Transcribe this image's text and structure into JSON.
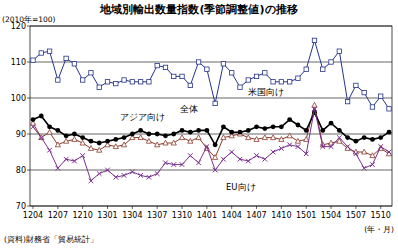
{
  "chart_data": {
    "type": "line",
    "title": "地域別輸出数量指数(季節調整値)の推移",
    "y_label": "(2010年=100)",
    "x_label": "(年・月)",
    "source": "(資料)財務省「貿易統計」",
    "categories": [
      "1204",
      null,
      null,
      "1207",
      null,
      null,
      "1210",
      null,
      null,
      "1301",
      null,
      null,
      "1304",
      null,
      null,
      "1307",
      null,
      null,
      "1310",
      null,
      null,
      "1401",
      null,
      null,
      "1404",
      null,
      null,
      "1407",
      null,
      null,
      "1410",
      null,
      null,
      "1501",
      null,
      null,
      "1504",
      null,
      null,
      "1507",
      null,
      null,
      "1510",
      null
    ],
    "ylim": [
      70,
      120
    ],
    "yticks": [
      70,
      80,
      90,
      100,
      110,
      120
    ],
    "grid": true,
    "series": [
      {
        "name": "米国向け",
        "color": "#26348a",
        "marker": "square",
        "line_style": "solid",
        "values": [
          110.5,
          112.5,
          113,
          105,
          111,
          109.5,
          105,
          107,
          103,
          104.5,
          104,
          105,
          104.5,
          104.5,
          104.5,
          109,
          108.5,
          106,
          106,
          103.5,
          110,
          108,
          98.5,
          109.5,
          107,
          103,
          105,
          106,
          107,
          104.5,
          104.5,
          104.5,
          105.5,
          108,
          116,
          108,
          110,
          113,
          99,
          103.5,
          101.5,
          97.5,
          100.5,
          97
        ]
      },
      {
        "name": "アジア向け",
        "color": "#8b3a2a",
        "marker": "triangle",
        "line_style": "solid",
        "values": [
          93,
          89,
          90.5,
          87,
          88,
          88.5,
          87.5,
          86,
          85.5,
          87,
          86.5,
          87,
          89,
          89,
          88,
          87,
          87.5,
          87.5,
          89,
          88,
          89,
          86,
          83.5,
          89,
          89.5,
          90,
          89,
          88.5,
          89,
          89,
          88.5,
          89.5,
          88,
          88.5,
          98,
          87,
          87.5,
          88,
          86,
          85,
          85,
          84,
          86,
          84.5
        ]
      },
      {
        "name": "全体",
        "color": "#000000",
        "marker": "circle",
        "line_style": "solid",
        "values": [
          94,
          95,
          92,
          91,
          89.5,
          90,
          89,
          88,
          87.5,
          88,
          88.5,
          89,
          90,
          91,
          90,
          90,
          89.5,
          90,
          91,
          90.5,
          91,
          91,
          87,
          92,
          90.5,
          90.5,
          91,
          92,
          91.5,
          92,
          92,
          94,
          92.5,
          91,
          96,
          91,
          93,
          91,
          89,
          88,
          89,
          88.5,
          89,
          90.5
        ]
      },
      {
        "name": "EU向け",
        "color": "#7b2f8f",
        "marker": "x",
        "line_style": "solid",
        "values": [
          92,
          89,
          85.5,
          80.5,
          83,
          82.5,
          84,
          77,
          79,
          80,
          78,
          78.5,
          79.5,
          78.5,
          78,
          79,
          82,
          81.5,
          81.5,
          84,
          82,
          86.5,
          80,
          83,
          85,
          83,
          82.5,
          84,
          83,
          85,
          86,
          87,
          86.5,
          84.5,
          97,
          86.5,
          86.5,
          89,
          86.5,
          84.5,
          80.5,
          81.5,
          86.5,
          85
        ]
      }
    ]
  }
}
